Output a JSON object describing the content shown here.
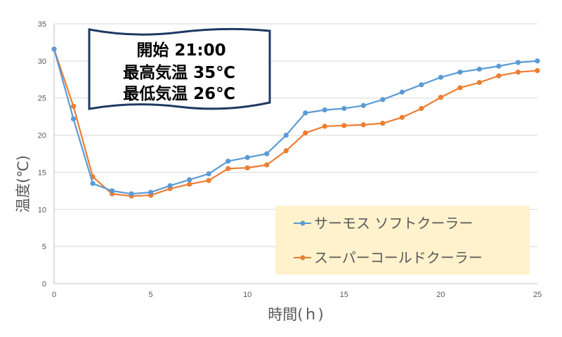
{
  "chart_data": {
    "type": "line",
    "title": "",
    "xlabel": "時間(ｈ)",
    "ylabel": "温度(℃)",
    "xlim": [
      0,
      25
    ],
    "ylim": [
      0,
      35
    ],
    "x_ticks": [
      0,
      5,
      10,
      15,
      20,
      25
    ],
    "y_ticks": [
      0,
      5,
      10,
      15,
      20,
      25,
      30,
      35
    ],
    "grid": {
      "horizontal": true,
      "vertical": false
    },
    "legend_position": "lower right",
    "x": [
      0,
      1,
      2,
      3,
      4,
      5,
      6,
      7,
      8,
      9,
      10,
      11,
      12,
      13,
      14,
      15,
      16,
      17,
      18,
      19,
      20,
      21,
      22,
      23,
      24,
      25
    ],
    "series": [
      {
        "name": "サーモス ソフトクーラー",
        "color": "#5B9BD5",
        "values": [
          31.6,
          22.2,
          13.5,
          12.5,
          12.1,
          12.3,
          13.2,
          14.0,
          14.8,
          16.5,
          17.0,
          17.5,
          20.0,
          23.0,
          23.4,
          23.6,
          24.0,
          24.8,
          25.8,
          26.8,
          27.8,
          28.5,
          28.9,
          29.3,
          29.8,
          30.0
        ]
      },
      {
        "name": "スーパーコールドクーラー",
        "color": "#ED7D31",
        "values": [
          31.6,
          23.9,
          14.4,
          12.1,
          11.8,
          11.9,
          12.8,
          13.4,
          13.9,
          15.5,
          15.6,
          16.0,
          17.9,
          20.3,
          21.2,
          21.3,
          21.4,
          21.6,
          22.4,
          23.6,
          25.1,
          26.4,
          27.1,
          28.0,
          28.5,
          28.7
        ]
      }
    ],
    "annotations": [
      {
        "text_lines": [
          "開始 21:00",
          "最高気温 35℃",
          "最低気温 26℃"
        ],
        "shape": "wave-banner"
      }
    ]
  },
  "legend": {
    "background": "#FFF2CC",
    "items": [
      {
        "label": "サーモス ソフトクーラー",
        "color": "#5B9BD5"
      },
      {
        "label": "スーパーコールドクーラー",
        "color": "#ED7D31"
      }
    ]
  },
  "annotation": {
    "line1": "開始 21:00",
    "line2": "最高気温 35℃",
    "line3": "最低気温 26℃"
  },
  "axes": {
    "xlabel": "時間(ｈ)",
    "ylabel": "温度(℃)"
  }
}
